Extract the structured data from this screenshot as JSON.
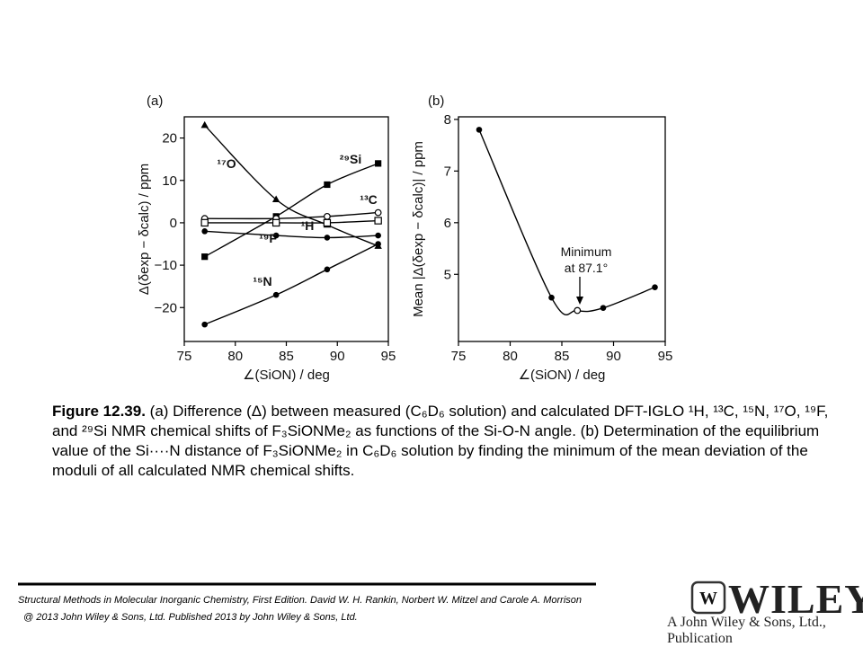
{
  "chart_data": [
    {
      "type": "line",
      "panel": "(a)",
      "x_label": "∠(SiON) / deg",
      "y_label": "Δ(δexp − δcalc) / ppm",
      "x": [
        77,
        84,
        89,
        94
      ],
      "xlim": [
        75,
        95
      ],
      "xticks": [
        75,
        80,
        85,
        90,
        95
      ],
      "ylim": [
        -28,
        25
      ],
      "yticks": [
        {
          "value": -20,
          "label": "−20"
        },
        {
          "value": -10,
          "label": "−10"
        },
        0,
        10,
        20
      ],
      "series": [
        {
          "name": "¹⁷O",
          "color": "#000000",
          "marker": "triangle",
          "values": [
            23,
            5.5,
            -0.5,
            -5.5
          ]
        },
        {
          "name": "²⁹Si",
          "color": "#000000",
          "marker": "square",
          "values": [
            -8,
            1.5,
            9,
            14
          ]
        },
        {
          "name": "¹³C",
          "color": "#000000",
          "marker": "open-circle",
          "values": [
            1,
            1,
            1.5,
            2.4
          ]
        },
        {
          "name": "¹H",
          "color": "#000000",
          "marker": "open-square",
          "values": [
            0,
            0,
            0,
            0.5
          ]
        },
        {
          "name": "¹⁹F",
          "color": "#000000",
          "marker": "circle",
          "values": [
            -2,
            -3,
            -3.5,
            -3
          ]
        },
        {
          "name": "¹⁵N",
          "color": "#000000",
          "marker": "circle",
          "values": [
            -24,
            -17,
            -11,
            -5
          ]
        }
      ]
    },
    {
      "type": "line",
      "panel": "(b)",
      "x_label": "∠(SiON) / deg",
      "y_label": "Mean |Δ(δexp − δcalc)| / ppm",
      "x": [
        77,
        84,
        86.5,
        89,
        94
      ],
      "xlim": [
        75,
        95
      ],
      "xticks": [
        75,
        80,
        85,
        90,
        95
      ],
      "ylim": [
        3.7,
        8.05
      ],
      "yticks": [
        5,
        6,
        7,
        8
      ],
      "annotation": [
        "Minimum",
        "at 87.1°"
      ],
      "series": [
        {
          "color": "#000000",
          "markers": [
            "circle",
            "circle",
            "open-circle",
            "circle",
            "circle"
          ],
          "values": [
            7.8,
            4.55,
            4.3,
            4.35,
            4.75
          ]
        }
      ]
    }
  ],
  "caption": {
    "label": "Figure 12.39.",
    "text": "(a) Difference (Δ) between measured (C₆D₆ solution) and calculated DFT-IGLO ¹H, ¹³C, ¹⁵N, ¹⁷O, ¹⁹F, and ²⁹Si NMR chemical shifts of F₃SiONMe₂ as functions of the Si-O-N angle. (b) Determination of the equilibrium value of the Si····N distance of F₃SiONMe₂ in C₆D₆ solution by finding the minimum of the mean deviation of the moduli of all calculated NMR chemical shifts."
  },
  "footer": {
    "citation": [
      "Structural Methods in Molecular Inorganic Chemistry, First Edition. David W. H. Rankin, Norbert W. Mitzel and Carole A. Morrison",
      "@ 2013 John Wiley & Sons, Ltd. Published 2013 by John Wiley & Sons, Ltd."
    ],
    "logo": "WILEY",
    "tagline": "A John Wiley & Sons, Ltd., Publication"
  }
}
